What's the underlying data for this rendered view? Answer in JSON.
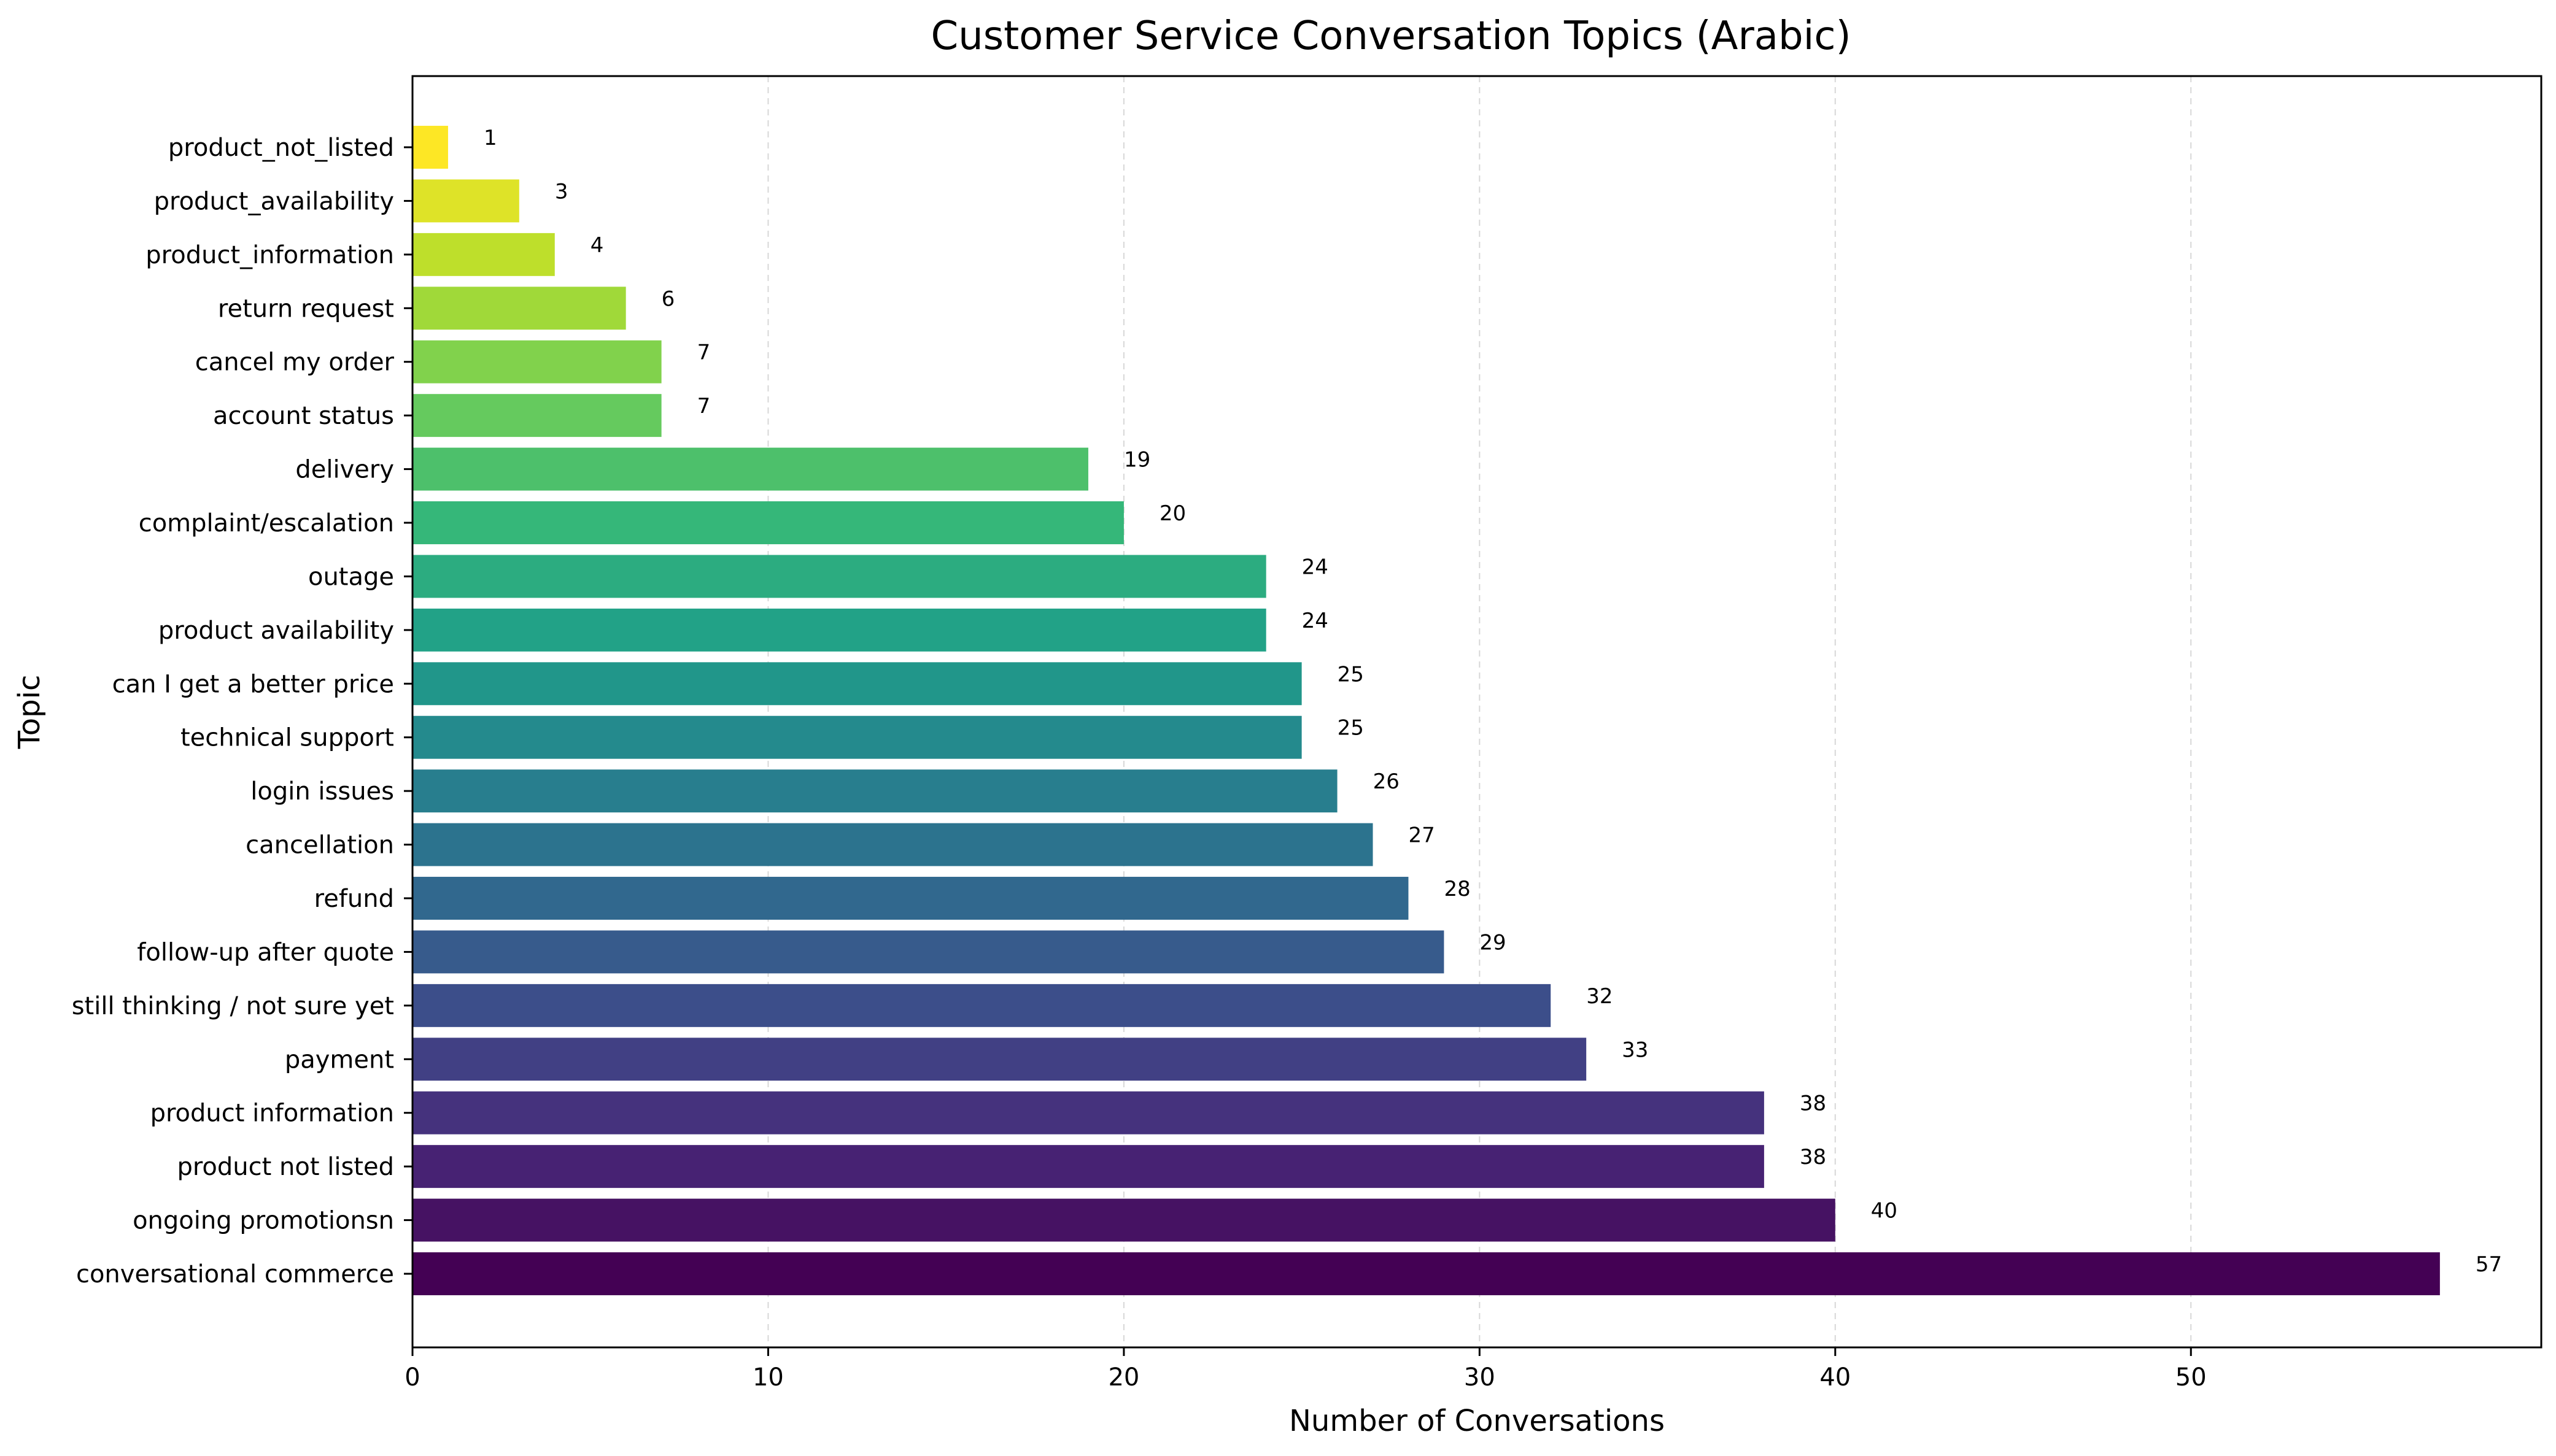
{
  "chart_data": {
    "type": "bar",
    "orientation": "horizontal",
    "title": "Customer Service Conversation Topics (Arabic)",
    "xlabel": "Number of Conversations",
    "ylabel": "Topic",
    "xlim": [
      0,
      59.85
    ],
    "xticks": [
      0,
      10,
      20,
      30,
      40,
      50
    ],
    "grid": "x-dashed",
    "colormap": "viridis",
    "categories": [
      "conversational commerce",
      "ongoing promotionsn",
      "product not listed",
      "product information",
      "payment",
      "still thinking / not sure yet",
      "follow-up after quote",
      "refund",
      "cancellation",
      "login issues",
      "technical support",
      "can I get a better price",
      "product availability",
      "outage",
      "complaint/escalation",
      "delivery",
      "account status",
      "cancel my order",
      "return request",
      "product_information",
      "product_availability",
      "product_not_listed"
    ],
    "values": [
      57,
      40,
      38,
      38,
      33,
      32,
      29,
      28,
      27,
      26,
      25,
      25,
      24,
      24,
      20,
      19,
      7,
      7,
      6,
      4,
      3,
      1
    ],
    "colors": [
      "#440154",
      "#481769",
      "#472a7a",
      "#433d84",
      "#3d4e8a",
      "#355e8d",
      "#2e6d8e",
      "#297b8e",
      "#23898e",
      "#1f978b",
      "#21a585",
      "#2eb37c",
      "#46c06f",
      "#65cb5e",
      "#89d548",
      "#b0dd2f",
      "#d8e219",
      "#fde725",
      "#fde725",
      "#fde725",
      "#fde725",
      "#fde725"
    ]
  }
}
